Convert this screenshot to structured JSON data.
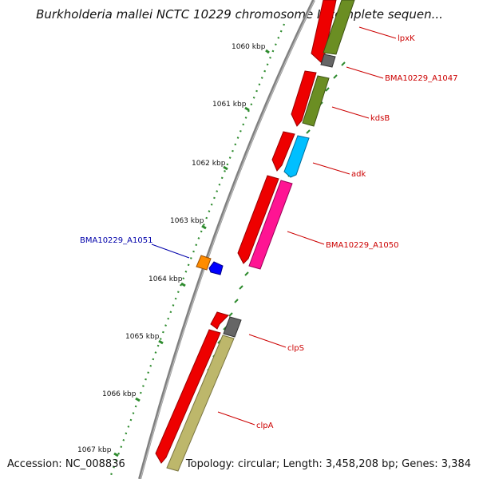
{
  "title": "Burkholderia mallei NCTC 10229 chromosome I, complete sequen...",
  "footer": {
    "accession": "Accession: NC_008836",
    "summary": "Topology: circular; Length: 3,458,208 bp; Genes: 3,384"
  },
  "ticks": [
    {
      "label": "1060 kbp"
    },
    {
      "label": "1061 kbp"
    },
    {
      "label": "1062 kbp"
    },
    {
      "label": "1063 kbp"
    },
    {
      "label": "1064 kbp"
    },
    {
      "label": "1065 kbp"
    },
    {
      "label": "1066 kbp"
    },
    {
      "label": "1067 kbp"
    }
  ],
  "genes": [
    {
      "name": "lpxK",
      "color": "#cc0000"
    },
    {
      "name": "BMA10229_A1047",
      "color": "#cc0000"
    },
    {
      "name": "kdsB",
      "color": "#cc0000"
    },
    {
      "name": "adk",
      "color": "#cc0000"
    },
    {
      "name": "BMA10229_A1050",
      "color": "#cc0000"
    },
    {
      "name": "BMA10229_A1051",
      "color": "#0000aa"
    },
    {
      "name": "clpS",
      "color": "#cc0000"
    },
    {
      "name": "clpA",
      "color": "#cc0000"
    }
  ],
  "colors": {
    "cds_red": "#ff0000",
    "olive": "#6b8e23",
    "grey": "#666666",
    "cyan": "#00bfff",
    "magenta": "#ff1493",
    "orange": "#ff8c00",
    "blue": "#0000ff",
    "khaki": "#bdb76b",
    "backbone": "#808080",
    "tick_green": "#2e8b2e"
  }
}
